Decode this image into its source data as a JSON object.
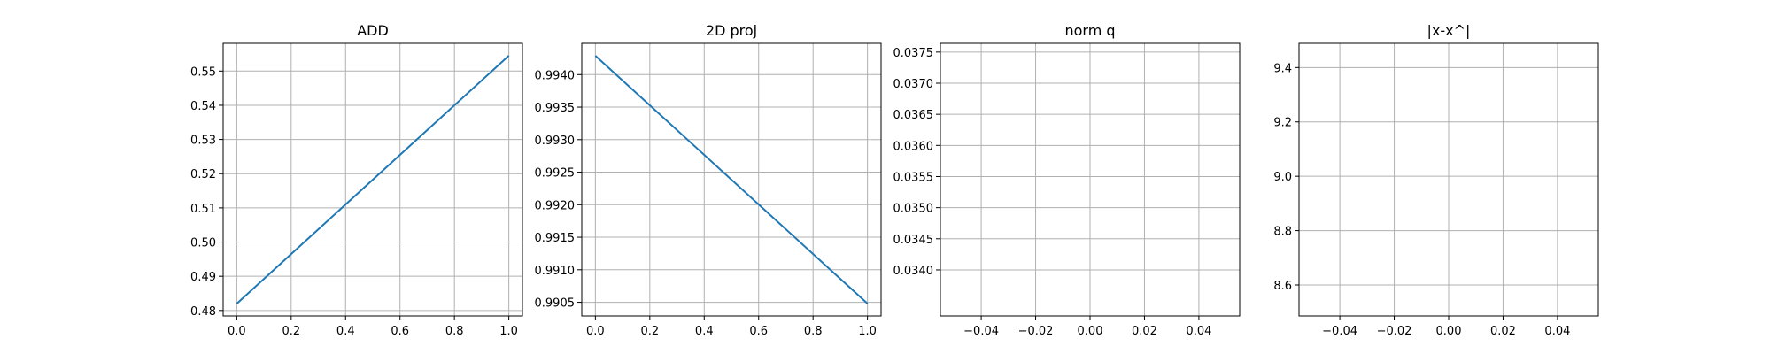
{
  "figure": {
    "background": "#ffffff",
    "grid": true,
    "legend": "none"
  },
  "chart_data": [
    {
      "type": "line",
      "title": "ADD",
      "xlabel": "",
      "ylabel": "",
      "x": [
        0.0,
        1.0
      ],
      "series": [
        {
          "values": [
            0.482,
            0.5545
          ],
          "color": "#1f77b4"
        }
      ],
      "xlim": [
        -0.05,
        1.05
      ],
      "ylim": [
        0.4784,
        0.5581
      ],
      "xticks": [
        0.0,
        0.2,
        0.4,
        0.6,
        0.8,
        1.0
      ],
      "xtick_labels": [
        "0.0",
        "0.2",
        "0.4",
        "0.6",
        "0.8",
        "1.0"
      ],
      "yticks": [
        0.48,
        0.49,
        0.5,
        0.51,
        0.52,
        0.53,
        0.54,
        0.55
      ],
      "ytick_labels": [
        "0.48",
        "0.49",
        "0.50",
        "0.51",
        "0.52",
        "0.53",
        "0.54",
        "0.55"
      ]
    },
    {
      "type": "line",
      "title": "2D proj",
      "xlabel": "",
      "ylabel": "",
      "x": [
        0.0,
        1.0
      ],
      "series": [
        {
          "values": [
            0.99429,
            0.99048
          ],
          "color": "#1f77b4"
        }
      ],
      "xlim": [
        -0.05,
        1.05
      ],
      "ylim": [
        0.99029,
        0.99448
      ],
      "xticks": [
        0.0,
        0.2,
        0.4,
        0.6,
        0.8,
        1.0
      ],
      "xtick_labels": [
        "0.0",
        "0.2",
        "0.4",
        "0.6",
        "0.8",
        "1.0"
      ],
      "yticks": [
        0.9905,
        0.991,
        0.9915,
        0.992,
        0.9925,
        0.993,
        0.9935,
        0.994
      ],
      "ytick_labels": [
        "0.9905",
        "0.9910",
        "0.9915",
        "0.9920",
        "0.9925",
        "0.9930",
        "0.9935",
        "0.9940"
      ]
    },
    {
      "type": "line",
      "title": "norm q",
      "xlabel": "",
      "ylabel": "",
      "x": [],
      "series": [
        {
          "values": [],
          "color": "#1f77b4"
        }
      ],
      "xlim": [
        -0.055,
        0.055
      ],
      "ylim": [
        0.03326,
        0.03764
      ],
      "xticks": [
        -0.04,
        -0.02,
        0.0,
        0.02,
        0.04
      ],
      "xtick_labels": [
        "−0.04",
        "−0.02",
        "0.00",
        "0.02",
        "0.04"
      ],
      "yticks": [
        0.034,
        0.0345,
        0.035,
        0.0355,
        0.036,
        0.0365,
        0.037,
        0.0375
      ],
      "ytick_labels": [
        "0.0340",
        "0.0345",
        "0.0350",
        "0.0355",
        "0.0360",
        "0.0365",
        "0.0370",
        "0.0375"
      ]
    },
    {
      "type": "line",
      "title": "|x-x^|",
      "xlabel": "",
      "ylabel": "",
      "x": [],
      "series": [
        {
          "values": [],
          "color": "#1f77b4"
        }
      ],
      "xlim": [
        -0.055,
        0.055
      ],
      "ylim": [
        8.486,
        9.489
      ],
      "xticks": [
        -0.04,
        -0.02,
        0.0,
        0.02,
        0.04
      ],
      "xtick_labels": [
        "−0.04",
        "−0.02",
        "0.00",
        "0.02",
        "0.04"
      ],
      "yticks": [
        8.6,
        8.8,
        9.0,
        9.2,
        9.4
      ],
      "ytick_labels": [
        "8.6",
        "8.8",
        "9.0",
        "9.2",
        "9.4"
      ]
    }
  ]
}
